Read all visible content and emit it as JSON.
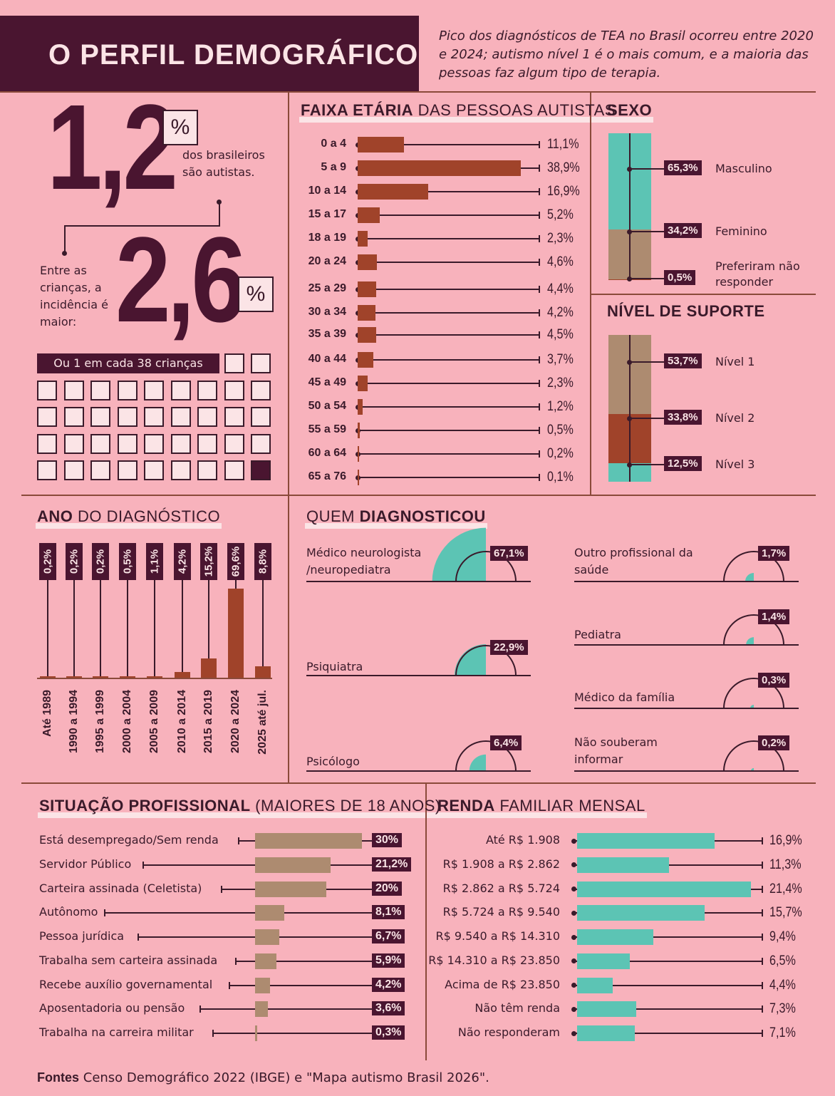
{
  "header": {
    "title": "O PERFIL DEMOGRÁFICO",
    "subtitle": "Pico dos diagnósticos de TEA no Brasil ocorreu entre 2020 e 2024; autismo nível 1 é o mais comum, e a maioria das pessoas faz algum tipo de terapia."
  },
  "stats": {
    "big1": "1,2",
    "big1_pct": "%",
    "big1_text": "dos brasileiros são autistas.",
    "big2_text": "Entre as crianças, a incidência é maior:",
    "big2": "2,6",
    "big2_pct": "%",
    "one_in": "Ou 1 em cada 38 crianças",
    "grid_total": 38,
    "grid_filled": 1
  },
  "colors": {
    "brown_bar": "#a0432a",
    "tan": "#ad8b70",
    "teal": "#5cc4b4",
    "dark": "#4a1530",
    "cream": "#fbe4e6",
    "bg": "#f8b2bc"
  },
  "footer": {
    "label": "Fontes",
    "text": "Censo Demográfico 2022 (IBGE) e \"Mapa autismo Brasil 2026\"."
  },
  "chart_data": [
    {
      "id": "age",
      "type": "bar",
      "title_bold": "FAIXA ETÁRIA",
      "title_rest": "DAS PESSOAS AUTISTAS",
      "categories": [
        "0 a 4",
        "5 a 9",
        "10 a 14",
        "15 a 17",
        "18 a 19",
        "20 a 24",
        "25 a 29",
        "30 a 34",
        "35 a 39",
        "40 a 44",
        "45 a 49",
        "50 a 54",
        "55 a 59",
        "60 a 64",
        "65 a 76"
      ],
      "values": [
        11.1,
        38.9,
        16.9,
        5.2,
        2.3,
        4.6,
        4.4,
        4.2,
        4.5,
        3.7,
        2.3,
        1.2,
        0.5,
        0.2,
        0.1
      ],
      "labels": [
        "11,1%",
        "38,9%",
        "16,9%",
        "5,2%",
        "2,3%",
        "4,6%",
        "4,4%",
        "4,2%",
        "4,5%",
        "3,7%",
        "2,3%",
        "1,2%",
        "0,5%",
        "0,2%",
        "0,1%"
      ]
    },
    {
      "id": "sex",
      "type": "bar",
      "title_bold": "SEXO",
      "categories": [
        "Masculino",
        "Feminino",
        "Preferiram não responder"
      ],
      "values": [
        65.3,
        34.2,
        0.5
      ],
      "labels": [
        "65,3%",
        "34,2%",
        "0,5%"
      ]
    },
    {
      "id": "support",
      "type": "bar",
      "title_bold": "NÍVEL DE SUPORTE",
      "categories": [
        "Nível 1",
        "Nível 2",
        "Nível 3"
      ],
      "values": [
        53.7,
        33.8,
        12.5
      ],
      "labels": [
        "53,7%",
        "33,8%",
        "12,5%"
      ]
    },
    {
      "id": "year",
      "type": "bar",
      "title_bold": "ANO",
      "title_rest": "DO DIAGNÓSTICO",
      "categories": [
        "Até 1989",
        "1990 a 1994",
        "1995 a 1999",
        "2000 a 2004",
        "2005 a 2009",
        "2010 a 2014",
        "2015 a 2019",
        "2020 a 2024",
        "2025 até jul."
      ],
      "values": [
        0.2,
        0.2,
        0.2,
        0.5,
        1.1,
        4.2,
        15.2,
        69.6,
        8.8
      ],
      "labels": [
        "0,2%",
        "0,2%",
        "0,2%",
        "0,5%",
        "1,1%",
        "4,2%",
        "15,2%",
        "69,6%",
        "8,8%"
      ]
    },
    {
      "id": "who",
      "type": "pie",
      "title_rest": "QUEM",
      "title_bold": "DIAGNOSTICOU",
      "categories": [
        "Médico neurologista /neuropediatra",
        "Psiquiatra",
        "Psicólogo",
        "Outro profissional da saúde",
        "Pediatra",
        "Médico da família",
        "Não souberam informar"
      ],
      "values": [
        67.1,
        22.9,
        6.4,
        1.7,
        1.4,
        0.3,
        0.2
      ],
      "labels": [
        "67,1%",
        "22,9%",
        "6,4%",
        "1,7%",
        "1,4%",
        "0,3%",
        "0,2%"
      ]
    },
    {
      "id": "job",
      "type": "bar",
      "title_bold": "SITUAÇÃO PROFISSIONAL",
      "title_rest": "(MAIORES DE 18 ANOS)",
      "categories": [
        "Está desempregado/Sem renda",
        "Servidor Público",
        "Carteira assinada (Celetista)",
        "Autônomo",
        "Pessoa jurídica",
        "Trabalha sem carteira assinada",
        "Recebe auxílio governamental",
        "Aposentadoria ou pensão",
        "Trabalha na carreira militar"
      ],
      "values": [
        30,
        21.2,
        20,
        8.1,
        6.7,
        5.9,
        4.2,
        3.6,
        0.3
      ],
      "labels": [
        "30%",
        "21,2%",
        "20%",
        "8,1%",
        "6,7%",
        "5,9%",
        "4,2%",
        "3,6%",
        "0,3%"
      ]
    },
    {
      "id": "income",
      "type": "bar",
      "title_bold": "RENDA",
      "title_rest": "FAMILIAR MENSAL",
      "categories": [
        "Até R$ 1.908",
        "R$ 1.908 a R$ 2.862",
        "R$ 2.862 a R$ 5.724",
        "R$ 5.724 a R$ 9.540",
        "R$ 9.540 a R$ 14.310",
        "R$ 14.310 a R$ 23.850",
        "Acima de R$ 23.850",
        "Não têm renda",
        "Não responderam"
      ],
      "values": [
        16.9,
        11.3,
        21.4,
        15.7,
        9.4,
        6.5,
        4.4,
        7.3,
        7.1
      ],
      "labels": [
        "16,9%",
        "11,3%",
        "21,4%",
        "15,7%",
        "9,4%",
        "6,5%",
        "4,4%",
        "7,3%",
        "7,1%"
      ]
    }
  ]
}
